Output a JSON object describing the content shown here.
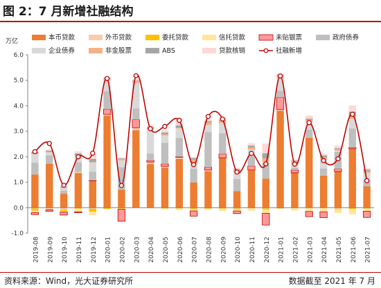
{
  "header": {
    "title": "图 2：7 月新增社融结构"
  },
  "footer": {
    "source": "资料来源：Wind，光大证券研究所",
    "deadline": "数据截至 2021 年 7 月"
  },
  "colors": {
    "accent_rule": "#c00000",
    "rmb_loans": "#ed7d31",
    "fx_loans": "#f8cbad",
    "entrusted": "#ffc000",
    "trust": "#ffe699",
    "undiscounted_bills": "#ff9999",
    "gov_bonds": "#bfbfbf",
    "corp_bonds": "#d9d9d9",
    "non_fin_equity": "#f4b183",
    "abs": "#a6a6a6",
    "write_off": "#ffd7d7",
    "tsf_line": "#c00000"
  },
  "chart_data": {
    "type": "bar",
    "stacked": true,
    "unit_label": "万亿",
    "ylim": [
      -1.0,
      6.0
    ],
    "yticks": [
      "-1.0",
      "0.0",
      "1.0",
      "2.0",
      "3.0",
      "4.0",
      "5.0",
      "6.0"
    ],
    "grid": false,
    "legend_position": "top",
    "categories": [
      "2019-08",
      "2019-09",
      "2019-10",
      "2019-11",
      "2019-12",
      "2020-01",
      "2020-02",
      "2020-03",
      "2020-04",
      "2020-05",
      "2020-06",
      "2020-07",
      "2020-08",
      "2020-09",
      "2020-10",
      "2020-11",
      "2020-12",
      "2021-01",
      "2021-02",
      "2021-03",
      "2021-04",
      "2021-05",
      "2021-06",
      "2021-07"
    ],
    "series": [
      {
        "name": "本币贷款",
        "key": "rmb_loans",
        "values": [
          1.3,
          1.73,
          0.55,
          1.36,
          1.06,
          3.61,
          0.71,
          3.04,
          1.71,
          1.57,
          1.92,
          0.99,
          1.43,
          1.95,
          0.65,
          1.47,
          1.14,
          3.8,
          1.37,
          2.75,
          1.27,
          1.42,
          2.32,
          0.84
        ]
      },
      {
        "name": "外币贷款",
        "key": "fx_loans",
        "values": [
          -0.03,
          -0.05,
          -0.08,
          0.05,
          -0.04,
          0.05,
          -0.01,
          0.1,
          0.08,
          0.05,
          0.06,
          -0.02,
          0.05,
          -0.01,
          -0.03,
          0.01,
          -0.03,
          0.05,
          -0.01,
          0.01,
          0.01,
          -0.04,
          -0.01,
          -0.02
        ]
      },
      {
        "name": "委托贷款",
        "key": "entrusted",
        "values": [
          -0.09,
          -0.03,
          -0.05,
          -0.04,
          -0.12,
          -0.05,
          -0.03,
          -0.01,
          -0.01,
          -0.03,
          -0.03,
          -0.04,
          -0.04,
          -0.03,
          -0.03,
          -0.02,
          -0.05,
          -0.03,
          -0.01,
          -0.01,
          -0.01,
          -0.02,
          -0.04,
          -0.02
        ]
      },
      {
        "name": "信托贷款",
        "key": "trust",
        "values": [
          -0.07,
          -0.01,
          -0.04,
          -0.12,
          -0.14,
          -0.01,
          -0.02,
          -0.01,
          -0.02,
          -0.03,
          -0.06,
          -0.07,
          -0.04,
          -0.09,
          -0.07,
          -0.1,
          -0.14,
          -0.01,
          -0.09,
          -0.14,
          -0.15,
          -0.15,
          -0.21,
          -0.1
        ]
      },
      {
        "name": "未贴银票",
        "key": "undiscounted_bills",
        "values": [
          -0.08,
          -0.05,
          -0.12,
          -0.04,
          0.01,
          0.21,
          -0.47,
          0.32,
          0.07,
          0.1,
          0.02,
          -0.2,
          0.11,
          0.16,
          -0.1,
          0.15,
          -0.46,
          0.49,
          0.11,
          -0.2,
          -0.23,
          0.1,
          0.04,
          -0.24
        ]
      },
      {
        "name": "政府债券",
        "key": "gov_bonds",
        "values": [
          0.47,
          0.32,
          0.12,
          0.37,
          0.35,
          0.7,
          0.88,
          0.44,
          0.27,
          0.83,
          0.74,
          0.54,
          1.38,
          0.81,
          0.48,
          0.4,
          0.62,
          0.25,
          0.09,
          0.3,
          0.26,
          0.67,
          0.75,
          0.23
        ]
      },
      {
        "name": "企业债券",
        "key": "corp_bonds",
        "values": [
          0.33,
          0.12,
          0.1,
          0.23,
          0.35,
          0.45,
          0.27,
          0.99,
          0.94,
          0.28,
          0.37,
          0.22,
          0.27,
          0.39,
          0.24,
          0.25,
          0.04,
          0.5,
          0.14,
          0.31,
          0.35,
          0.05,
          0.38,
          0.29
        ]
      },
      {
        "name": "非金股票",
        "key": "non_fin_equity",
        "values": [
          0.02,
          0.02,
          0.02,
          0.04,
          0.02,
          0.05,
          0.06,
          0.07,
          0.04,
          0.05,
          0.03,
          0.14,
          0.1,
          0.1,
          0.09,
          0.08,
          0.14,
          0.1,
          0.11,
          0.08,
          0.08,
          0.06,
          0.1,
          0.07
        ]
      },
      {
        "name": "ABS",
        "key": "abs",
        "values": [
          0.07,
          0.05,
          0.02,
          0.08,
          0.13,
          0.03,
          0.02,
          0.03,
          0.05,
          0.07,
          0.09,
          0.06,
          0.06,
          0.05,
          0.05,
          0.08,
          0.2,
          0.03,
          0.03,
          0.05,
          0.08,
          0.04,
          0.18,
          0.07
        ]
      },
      {
        "name": "贷款核销",
        "key": "write_off",
        "values": [
          0.04,
          0.04,
          0.04,
          0.09,
          0.2,
          0.04,
          0.03,
          0.06,
          0.07,
          0.09,
          0.25,
          0.05,
          0.07,
          0.1,
          0.06,
          0.09,
          0.38,
          0.04,
          0.04,
          0.12,
          0.06,
          0.1,
          0.24,
          0.05
        ]
      }
    ],
    "line": {
      "name": "社融新增",
      "values": [
        2.2,
        2.52,
        0.88,
        2.0,
        2.14,
        5.07,
        0.87,
        5.18,
        3.1,
        3.19,
        3.43,
        1.69,
        3.58,
        3.48,
        1.4,
        2.13,
        1.72,
        5.17,
        1.71,
        3.34,
        1.85,
        1.92,
        3.67,
        1.06
      ]
    }
  }
}
